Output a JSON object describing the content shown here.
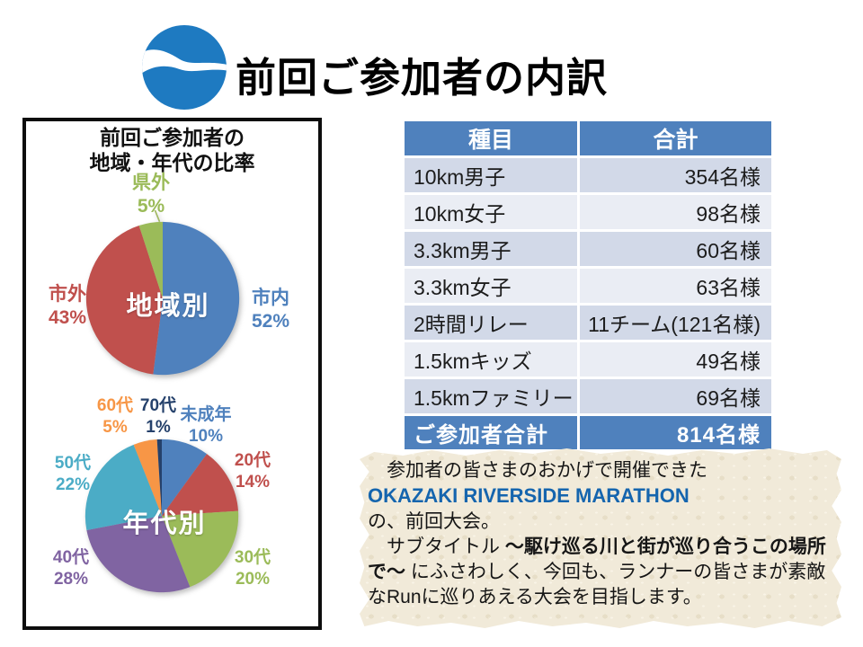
{
  "slide": {
    "title": "前回ご参加者の内訳"
  },
  "colors": {
    "accent": "#4F81BD",
    "band_dark": "#D2D9E8",
    "band_light": "#EAEDF4",
    "note_bg": "#F1EAD9",
    "brand_blue": "#1565AE",
    "logo_blue": "#1E7AC1"
  },
  "left_panel": {
    "title_line1": "前回ご参加者の",
    "title_line2": "地域・年代の比率"
  },
  "chart_data": [
    {
      "type": "pie",
      "title": "地域別",
      "categories": [
        "市内",
        "市外",
        "県外"
      ],
      "values": [
        52,
        43,
        5
      ],
      "colors": [
        "#4F81BD",
        "#C0504D",
        "#9BBB59"
      ],
      "legend_position": "outside-labels",
      "start_angle": "12-oclock-clockwise"
    },
    {
      "type": "pie",
      "title": "年代別",
      "categories": [
        "未成年",
        "20代",
        "30代",
        "40代",
        "50代",
        "60代",
        "70代"
      ],
      "values": [
        10,
        14,
        20,
        28,
        22,
        5,
        1
      ],
      "colors": [
        "#4F81BD",
        "#C0504D",
        "#9BBB59",
        "#8064A2",
        "#4BACC6",
        "#F79646",
        "#25416B"
      ],
      "legend_position": "outside-labels",
      "start_angle": "12-oclock-clockwise"
    }
  ],
  "table": {
    "headers": [
      "種目",
      "合計"
    ],
    "rows": [
      [
        "10km男子",
        "354名様"
      ],
      [
        "10km女子",
        "98名様"
      ],
      [
        "3.3km男子",
        "60名様"
      ],
      [
        "3.3km女子",
        "63名様"
      ],
      [
        "2時間リレー",
        "11チーム(121名様)"
      ],
      [
        "1.5kmキッズ",
        "49名様"
      ],
      [
        "1.5kmファミリー",
        "69名様"
      ]
    ],
    "footer": [
      "ご参加者合計",
      "814名様"
    ]
  },
  "note": {
    "line1": "　参加者の皆さまのおかげで開催できた",
    "brand": "OKAZAKI RIVERSIDE MARATHON",
    "line2": "の、前回大会。",
    "line3_prefix": "　サブタイトル ",
    "line3_bold": "～駆け巡る川と街が巡り合うこの場所で～",
    "line3_suffix": " にふさわしく、今回も、ランナーの皆さまが素敵なRunに巡りあえる大会を目指します。"
  }
}
